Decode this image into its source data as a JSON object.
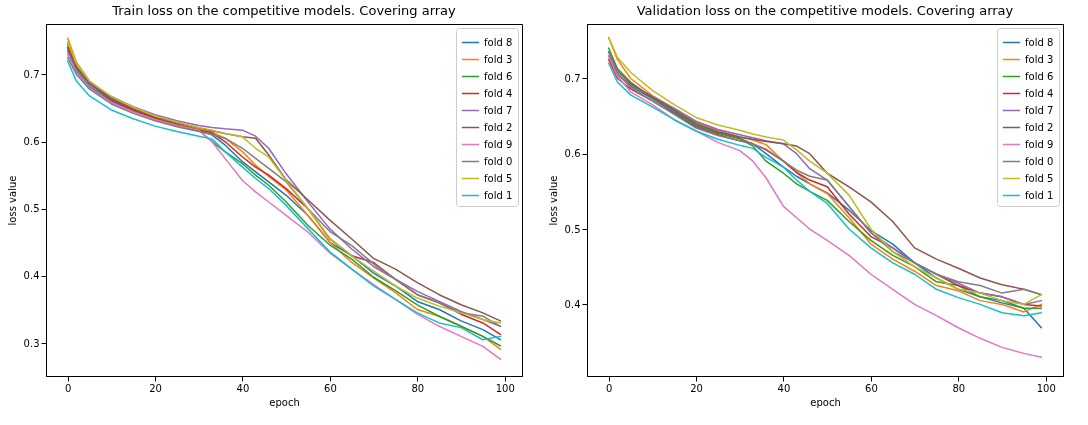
{
  "chart_data": [
    {
      "type": "line",
      "title": "Train loss on the competitive models. Covering array",
      "xlabel": "epoch",
      "ylabel": "loss value",
      "legend": "top right",
      "grid": false,
      "x": [
        0,
        2,
        5,
        10,
        15,
        20,
        25,
        30,
        33,
        36,
        40,
        43,
        46,
        50,
        55,
        60,
        65,
        70,
        75,
        80,
        85,
        90,
        95,
        99
      ],
      "xlim": [
        -4.95,
        103.95
      ],
      "xticks": [
        0,
        20,
        40,
        60,
        80,
        100
      ],
      "ylim": [
        0.251,
        0.775
      ],
      "yticks": [
        0.3,
        0.4,
        0.5,
        0.6,
        0.7
      ],
      "series": [
        {
          "name": "fold 8",
          "color": "#1f77b4",
          "values": [
            0.735,
            0.705,
            0.682,
            0.66,
            0.645,
            0.633,
            0.624,
            0.616,
            0.61,
            0.595,
            0.57,
            0.555,
            0.54,
            0.52,
            0.49,
            0.45,
            0.43,
            0.404,
            0.385,
            0.362,
            0.35,
            0.333,
            0.32,
            0.305
          ]
        },
        {
          "name": "fold 3",
          "color": "#ff7f0e",
          "values": [
            0.754,
            0.718,
            0.69,
            0.665,
            0.649,
            0.636,
            0.626,
            0.618,
            0.614,
            0.605,
            0.585,
            0.565,
            0.548,
            0.528,
            0.49,
            0.45,
            0.42,
            0.397,
            0.375,
            0.35,
            0.34,
            0.325,
            0.31,
            0.291
          ]
        },
        {
          "name": "fold 6",
          "color": "#2ca02c",
          "values": [
            0.745,
            0.712,
            0.688,
            0.664,
            0.648,
            0.635,
            0.625,
            0.617,
            0.6,
            0.585,
            0.567,
            0.55,
            0.535,
            0.51,
            0.475,
            0.446,
            0.425,
            0.398,
            0.378,
            0.357,
            0.34,
            0.325,
            0.31,
            0.296
          ]
        },
        {
          "name": "fold 4",
          "color": "#d62728",
          "values": [
            0.74,
            0.71,
            0.686,
            0.662,
            0.647,
            0.635,
            0.625,
            0.617,
            0.613,
            0.6,
            0.577,
            0.562,
            0.55,
            0.53,
            0.5,
            0.455,
            0.43,
            0.42,
            0.395,
            0.372,
            0.36,
            0.343,
            0.33,
            0.313
          ]
        },
        {
          "name": "fold 7",
          "color": "#9467bd",
          "values": [
            0.735,
            0.708,
            0.688,
            0.667,
            0.652,
            0.64,
            0.631,
            0.624,
            0.621,
            0.619,
            0.617,
            0.608,
            0.59,
            0.552,
            0.51,
            0.47,
            0.44,
            0.414,
            0.395,
            0.377,
            0.362,
            0.347,
            0.335,
            0.325
          ]
        },
        {
          "name": "fold 2",
          "color": "#8c564b",
          "values": [
            0.74,
            0.71,
            0.686,
            0.664,
            0.649,
            0.637,
            0.628,
            0.62,
            0.616,
            0.612,
            0.607,
            0.605,
            0.58,
            0.543,
            0.513,
            0.483,
            0.455,
            0.426,
            0.41,
            0.39,
            0.372,
            0.357,
            0.345,
            0.333
          ]
        },
        {
          "name": "fold 9",
          "color": "#e377c2",
          "values": [
            0.73,
            0.703,
            0.68,
            0.658,
            0.644,
            0.633,
            0.624,
            0.617,
            0.6,
            0.575,
            0.542,
            0.525,
            0.51,
            0.49,
            0.465,
            0.434,
            0.41,
            0.387,
            0.365,
            0.343,
            0.325,
            0.31,
            0.295,
            0.276
          ]
        },
        {
          "name": "fold 0",
          "color": "#7f7f7f",
          "values": [
            0.725,
            0.7,
            0.678,
            0.656,
            0.642,
            0.631,
            0.622,
            0.615,
            0.611,
            0.605,
            0.59,
            0.575,
            0.56,
            0.54,
            0.5,
            0.466,
            0.445,
            0.418,
            0.395,
            0.372,
            0.36,
            0.345,
            0.34,
            0.325
          ]
        },
        {
          "name": "fold 5",
          "color": "#bcbd22",
          "values": [
            0.748,
            0.716,
            0.69,
            0.667,
            0.651,
            0.638,
            0.629,
            0.621,
            0.617,
            0.612,
            0.607,
            0.59,
            0.577,
            0.542,
            0.5,
            0.456,
            0.43,
            0.407,
            0.385,
            0.367,
            0.355,
            0.345,
            0.335,
            0.33
          ]
        },
        {
          "name": "fold 1",
          "color": "#17becf",
          "values": [
            0.72,
            0.69,
            0.668,
            0.647,
            0.634,
            0.623,
            0.615,
            0.608,
            0.604,
            0.585,
            0.562,
            0.545,
            0.53,
            0.505,
            0.47,
            0.436,
            0.41,
            0.385,
            0.365,
            0.345,
            0.33,
            0.323,
            0.305,
            0.31
          ]
        }
      ]
    },
    {
      "type": "line",
      "title": "Validation loss on the competitive models. Covering array",
      "xlabel": "epoch",
      "ylabel": "loss value",
      "legend": "top right",
      "grid": false,
      "x": [
        0,
        2,
        5,
        10,
        15,
        20,
        25,
        30,
        33,
        36,
        40,
        43,
        46,
        50,
        55,
        60,
        65,
        70,
        75,
        80,
        85,
        90,
        95,
        99
      ],
      "xlim": [
        -4.95,
        103.95
      ],
      "xticks": [
        0,
        20,
        40,
        60,
        80,
        100
      ],
      "ylim": [
        0.305,
        0.772
      ],
      "yticks": [
        0.4,
        0.5,
        0.6,
        0.7
      ],
      "series": [
        {
          "name": "fold 8",
          "color": "#1f77b4",
          "values": [
            0.73,
            0.705,
            0.69,
            0.673,
            0.655,
            0.637,
            0.627,
            0.62,
            0.613,
            0.6,
            0.582,
            0.57,
            0.56,
            0.548,
            0.525,
            0.498,
            0.48,
            0.455,
            0.435,
            0.42,
            0.41,
            0.402,
            0.395,
            0.369
          ]
        },
        {
          "name": "fold 3",
          "color": "#ff7f0e",
          "values": [
            0.754,
            0.725,
            0.7,
            0.677,
            0.66,
            0.642,
            0.631,
            0.622,
            0.618,
            0.612,
            0.59,
            0.575,
            0.56,
            0.547,
            0.515,
            0.48,
            0.46,
            0.444,
            0.425,
            0.418,
            0.405,
            0.4,
            0.39,
            0.4
          ]
        },
        {
          "name": "fold 6",
          "color": "#2ca02c",
          "values": [
            0.74,
            0.713,
            0.695,
            0.674,
            0.657,
            0.638,
            0.628,
            0.62,
            0.61,
            0.59,
            0.574,
            0.56,
            0.55,
            0.538,
            0.51,
            0.485,
            0.465,
            0.45,
            0.43,
            0.425,
            0.41,
            0.405,
            0.395,
            0.395
          ]
        },
        {
          "name": "fold 4",
          "color": "#d62728",
          "values": [
            0.725,
            0.7,
            0.686,
            0.67,
            0.653,
            0.635,
            0.625,
            0.617,
            0.613,
            0.605,
            0.59,
            0.575,
            0.565,
            0.556,
            0.52,
            0.49,
            0.475,
            0.455,
            0.44,
            0.425,
            0.415,
            0.41,
            0.4,
            0.398
          ]
        },
        {
          "name": "fold 7",
          "color": "#9467bd",
          "values": [
            0.73,
            0.705,
            0.692,
            0.676,
            0.66,
            0.643,
            0.632,
            0.625,
            0.621,
            0.617,
            0.613,
            0.6,
            0.58,
            0.565,
            0.53,
            0.495,
            0.475,
            0.455,
            0.44,
            0.428,
            0.415,
            0.41,
            0.4,
            0.405
          ]
        },
        {
          "name": "fold 2",
          "color": "#8c564b",
          "values": [
            0.735,
            0.71,
            0.693,
            0.675,
            0.658,
            0.64,
            0.629,
            0.622,
            0.619,
            0.616,
            0.613,
            0.61,
            0.6,
            0.574,
            0.556,
            0.536,
            0.51,
            0.475,
            0.46,
            0.448,
            0.435,
            0.426,
            0.42,
            0.413
          ]
        },
        {
          "name": "fold 9",
          "color": "#e377c2",
          "values": [
            0.73,
            0.703,
            0.682,
            0.665,
            0.645,
            0.63,
            0.615,
            0.604,
            0.59,
            0.568,
            0.53,
            0.515,
            0.5,
            0.485,
            0.465,
            0.44,
            0.42,
            0.4,
            0.385,
            0.369,
            0.355,
            0.343,
            0.335,
            0.33
          ]
        },
        {
          "name": "fold 0",
          "color": "#7f7f7f",
          "values": [
            0.735,
            0.707,
            0.688,
            0.67,
            0.652,
            0.634,
            0.624,
            0.617,
            0.613,
            0.606,
            0.59,
            0.578,
            0.57,
            0.565,
            0.53,
            0.495,
            0.47,
            0.455,
            0.44,
            0.43,
            0.425,
            0.415,
            0.42,
            0.413
          ]
        },
        {
          "name": "fold 5",
          "color": "#bcbd22",
          "values": [
            0.754,
            0.728,
            0.708,
            0.684,
            0.665,
            0.648,
            0.638,
            0.631,
            0.626,
            0.622,
            0.618,
            0.605,
            0.59,
            0.574,
            0.545,
            0.5,
            0.47,
            0.45,
            0.435,
            0.42,
            0.415,
            0.405,
            0.4,
            0.413
          ]
        },
        {
          "name": "fold 1",
          "color": "#17becf",
          "values": [
            0.72,
            0.695,
            0.678,
            0.662,
            0.645,
            0.63,
            0.619,
            0.611,
            0.607,
            0.595,
            0.582,
            0.565,
            0.55,
            0.534,
            0.5,
            0.475,
            0.455,
            0.44,
            0.42,
            0.409,
            0.4,
            0.389,
            0.385,
            0.389
          ]
        }
      ]
    }
  ]
}
